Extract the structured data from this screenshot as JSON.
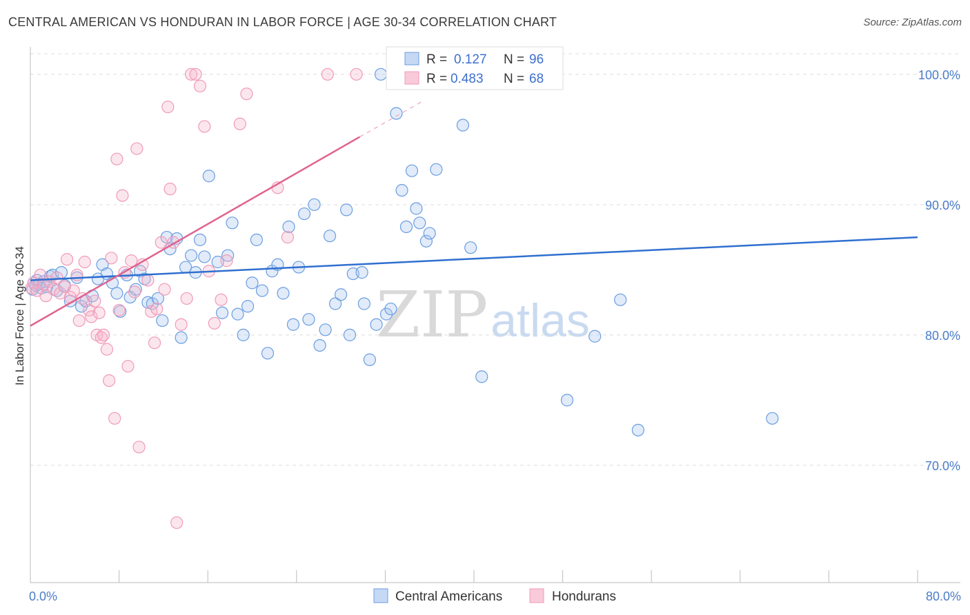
{
  "title": "CENTRAL AMERICAN VS HONDURAN IN LABOR FORCE | AGE 30-34 CORRELATION CHART",
  "source": "Source: ZipAtlas.com",
  "chart_data": {
    "type": "scatter",
    "ylabel": "In Labor Force | Age 30-34",
    "xlim": [
      0,
      80
    ],
    "ylim": [
      61,
      102
    ],
    "x_tick_labels": [
      "0.0%",
      "80.0%"
    ],
    "y_ticks": [
      70,
      80,
      90,
      100
    ],
    "y_tick_labels": [
      "70.0%",
      "80.0%",
      "90.0%",
      "100.0%"
    ],
    "grid": true,
    "watermark": "ZIPatlas",
    "colors": {
      "central_americans": "#6a9de0",
      "hondurans": "#f09ab8",
      "blue_line": "#2f6fd0",
      "pink_line": "#e0628e",
      "axis_text": "#4a7cc7"
    },
    "legend": {
      "position": "top-center",
      "rows": [
        {
          "r_label": "R =",
          "r_value": "0.127",
          "n_label": "N =",
          "n_value": "96"
        },
        {
          "r_label": "R =",
          "r_value": "0.483",
          "n_label": "N =",
          "n_value": "68"
        }
      ]
    },
    "series": [
      {
        "name": "Central Americans",
        "trend": {
          "x": [
            0,
            80
          ],
          "y": [
            84.2,
            87.5
          ]
        },
        "points": [
          [
            0.2,
            83.5
          ],
          [
            0.3,
            84.0
          ],
          [
            0.5,
            83.8
          ],
          [
            0.6,
            84.2
          ],
          [
            0.8,
            83.9
          ],
          [
            1.0,
            83.6
          ],
          [
            1.2,
            84.1
          ],
          [
            1.5,
            83.7
          ],
          [
            1.8,
            84.5
          ],
          [
            2.0,
            84.6
          ],
          [
            2.4,
            83.4
          ],
          [
            2.8,
            84.8
          ],
          [
            3.1,
            83.8
          ],
          [
            3.6,
            82.6
          ],
          [
            4.2,
            84.4
          ],
          [
            4.6,
            82.2
          ],
          [
            5.0,
            82.6
          ],
          [
            5.6,
            83.0
          ],
          [
            6.1,
            84.3
          ],
          [
            6.5,
            85.4
          ],
          [
            6.9,
            84.7
          ],
          [
            7.4,
            84.0
          ],
          [
            7.8,
            83.2
          ],
          [
            8.1,
            81.8
          ],
          [
            8.7,
            84.6
          ],
          [
            9.0,
            82.9
          ],
          [
            9.5,
            83.5
          ],
          [
            9.9,
            84.9
          ],
          [
            10.3,
            84.3
          ],
          [
            10.6,
            82.5
          ],
          [
            11.0,
            82.4
          ],
          [
            11.5,
            82.8
          ],
          [
            11.9,
            81.1
          ],
          [
            12.3,
            87.5
          ],
          [
            12.6,
            86.6
          ],
          [
            13.2,
            87.4
          ],
          [
            13.6,
            79.8
          ],
          [
            14.0,
            85.2
          ],
          [
            14.5,
            86.1
          ],
          [
            14.9,
            84.8
          ],
          [
            15.3,
            87.3
          ],
          [
            15.7,
            86.0
          ],
          [
            16.1,
            92.2
          ],
          [
            16.9,
            85.6
          ],
          [
            17.3,
            81.7
          ],
          [
            17.8,
            86.1
          ],
          [
            18.2,
            88.6
          ],
          [
            18.7,
            81.6
          ],
          [
            19.2,
            80.0
          ],
          [
            19.6,
            82.2
          ],
          [
            20.0,
            84.0
          ],
          [
            20.4,
            87.3
          ],
          [
            20.9,
            83.4
          ],
          [
            21.4,
            78.6
          ],
          [
            21.8,
            84.9
          ],
          [
            22.3,
            85.4
          ],
          [
            22.8,
            83.2
          ],
          [
            23.3,
            88.3
          ],
          [
            23.7,
            80.8
          ],
          [
            24.2,
            85.2
          ],
          [
            24.7,
            89.3
          ],
          [
            25.1,
            81.2
          ],
          [
            25.6,
            90.0
          ],
          [
            26.1,
            79.2
          ],
          [
            26.6,
            80.4
          ],
          [
            27.0,
            87.6
          ],
          [
            27.5,
            82.4
          ],
          [
            28.0,
            83.1
          ],
          [
            28.5,
            89.6
          ],
          [
            28.8,
            80.0
          ],
          [
            29.1,
            84.7
          ],
          [
            29.9,
            84.8
          ],
          [
            30.1,
            82.4
          ],
          [
            30.6,
            78.1
          ],
          [
            31.2,
            80.8
          ],
          [
            31.6,
            100.0
          ],
          [
            32.1,
            81.6
          ],
          [
            32.5,
            82.0
          ],
          [
            33.0,
            97.0
          ],
          [
            33.5,
            91.1
          ],
          [
            33.9,
            88.3
          ],
          [
            34.4,
            92.6
          ],
          [
            34.8,
            89.7
          ],
          [
            35.1,
            88.6
          ],
          [
            35.7,
            87.2
          ],
          [
            36.0,
            87.8
          ],
          [
            36.6,
            92.7
          ],
          [
            37.0,
            100.0
          ],
          [
            38.1,
            100.0
          ],
          [
            39.0,
            96.1
          ],
          [
            39.7,
            86.7
          ],
          [
            40.7,
            76.8
          ],
          [
            41.1,
            100.0
          ],
          [
            43.9,
            100.0
          ],
          [
            48.4,
            75.0
          ],
          [
            50.9,
            79.9
          ],
          [
            53.2,
            82.7
          ],
          [
            54.8,
            72.7
          ],
          [
            66.9,
            73.6
          ]
        ]
      },
      {
        "name": "Hondurans",
        "trend": {
          "x": [
            0,
            29.7
          ],
          "y": [
            80.7,
            95.2
          ]
        },
        "trend_ext": {
          "x": [
            29.7,
            35.5
          ],
          "y": [
            95.2,
            98.0
          ]
        },
        "points": [
          [
            0.1,
            83.6
          ],
          [
            0.3,
            84.0
          ],
          [
            0.6,
            83.4
          ],
          [
            0.9,
            84.6
          ],
          [
            1.2,
            83.9
          ],
          [
            1.4,
            83.0
          ],
          [
            1.7,
            84.1
          ],
          [
            2.1,
            83.5
          ],
          [
            2.4,
            84.4
          ],
          [
            2.7,
            83.2
          ],
          [
            3.1,
            83.7
          ],
          [
            3.3,
            85.8
          ],
          [
            3.6,
            82.9
          ],
          [
            3.9,
            83.4
          ],
          [
            4.2,
            84.6
          ],
          [
            4.4,
            81.1
          ],
          [
            4.7,
            82.8
          ],
          [
            4.9,
            85.6
          ],
          [
            5.3,
            81.9
          ],
          [
            5.5,
            81.4
          ],
          [
            5.8,
            82.6
          ],
          [
            6.0,
            80.0
          ],
          [
            6.2,
            81.7
          ],
          [
            6.4,
            79.8
          ],
          [
            6.6,
            80.0
          ],
          [
            6.9,
            78.9
          ],
          [
            7.1,
            76.5
          ],
          [
            7.3,
            85.9
          ],
          [
            7.6,
            73.6
          ],
          [
            7.8,
            93.5
          ],
          [
            8.0,
            81.9
          ],
          [
            8.3,
            90.7
          ],
          [
            8.5,
            84.8
          ],
          [
            8.8,
            77.6
          ],
          [
            9.1,
            85.7
          ],
          [
            9.4,
            83.3
          ],
          [
            9.6,
            94.3
          ],
          [
            9.8,
            71.4
          ],
          [
            10.1,
            85.4
          ],
          [
            10.6,
            84.2
          ],
          [
            10.9,
            81.8
          ],
          [
            11.2,
            79.4
          ],
          [
            11.4,
            82.0
          ],
          [
            11.8,
            87.1
          ],
          [
            12.1,
            83.5
          ],
          [
            12.4,
            97.5
          ],
          [
            12.6,
            91.2
          ],
          [
            12.9,
            87.1
          ],
          [
            13.2,
            65.6
          ],
          [
            13.6,
            80.8
          ],
          [
            14.1,
            82.8
          ],
          [
            14.5,
            100.0
          ],
          [
            14.9,
            100.0
          ],
          [
            15.3,
            99.1
          ],
          [
            15.7,
            96.0
          ],
          [
            16.1,
            84.9
          ],
          [
            16.6,
            80.9
          ],
          [
            17.2,
            82.7
          ],
          [
            17.7,
            85.7
          ],
          [
            18.9,
            96.2
          ],
          [
            19.5,
            98.5
          ],
          [
            22.3,
            91.3
          ],
          [
            23.2,
            87.5
          ],
          [
            26.8,
            100.0
          ],
          [
            29.4,
            100.0
          ]
        ]
      }
    ]
  }
}
